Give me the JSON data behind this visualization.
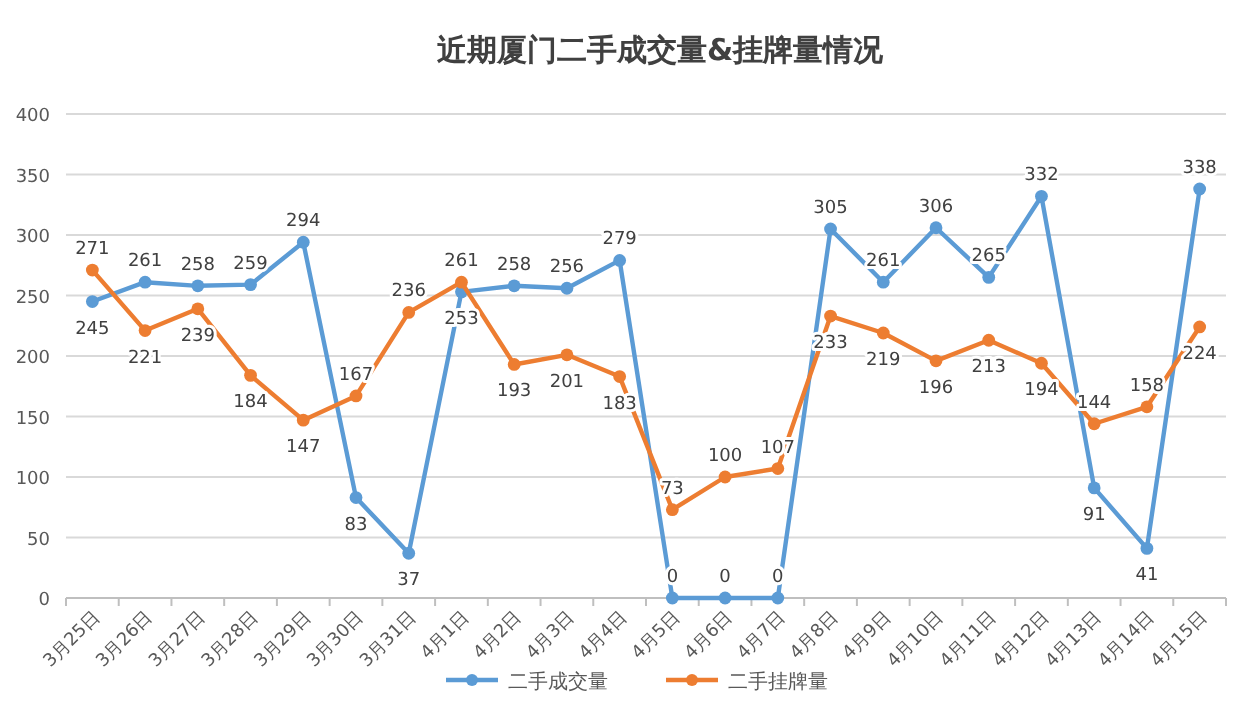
{
  "chart_data": {
    "type": "line",
    "title": "近期厦门二手成交量&挂牌量情况",
    "categories": [
      "3月25日",
      "3月26日",
      "3月27日",
      "3月28日",
      "3月29日",
      "3月30日",
      "3月31日",
      "4月1日",
      "4月2日",
      "4月3日",
      "4月4日",
      "4月5日",
      "4月6日",
      "4月7日",
      "4月8日",
      "4月9日",
      "4月10日",
      "4月11日",
      "4月12日",
      "4月13日",
      "4月14日",
      "4月15日"
    ],
    "series": [
      {
        "name": "二手成交量",
        "color": "#5b9bd5",
        "values": [
          245,
          261,
          258,
          259,
          294,
          83,
          37,
          253,
          258,
          256,
          279,
          0,
          0,
          0,
          305,
          261,
          306,
          265,
          332,
          91,
          41,
          338
        ]
      },
      {
        "name": "二手挂牌量",
        "color": "#ed7d31",
        "values": [
          271,
          221,
          239,
          184,
          147,
          167,
          236,
          261,
          193,
          201,
          183,
          73,
          100,
          107,
          233,
          219,
          196,
          213,
          194,
          144,
          158,
          224
        ]
      }
    ],
    "ylim": [
      0,
      400
    ],
    "yticks": [
      0,
      50,
      100,
      150,
      200,
      250,
      300,
      350,
      400
    ],
    "grid": "y",
    "legend": "bottom",
    "marker": "circle",
    "line_style": "solid",
    "data_labels": true
  }
}
